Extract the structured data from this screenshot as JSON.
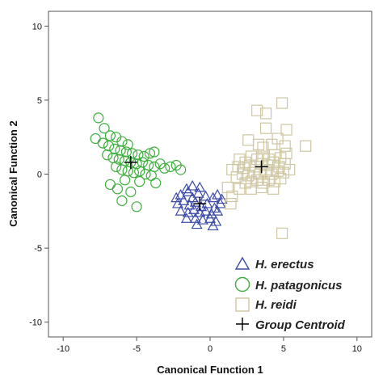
{
  "chart_data": {
    "type": "scatter",
    "xlabel": "Canonical Function 1",
    "ylabel": "Canonical Function 2",
    "xlim": [
      -11,
      11
    ],
    "ylim": [
      -11,
      11
    ],
    "xticks": [
      -10,
      -5,
      0,
      5,
      10
    ],
    "yticks": [
      10,
      5,
      0,
      -5,
      -10
    ],
    "grid": false,
    "legend_position": "bottom-right",
    "legend": [
      "H. erectus",
      "H. patagonicus",
      "H. reidi",
      "Group Centroid"
    ],
    "series": [
      {
        "name": "H. erectus",
        "marker": "triangle",
        "color": "#3a4aa8",
        "points": [
          [
            -2.0,
            -1.4
          ],
          [
            -1.5,
            -1.2
          ],
          [
            -1.2,
            -1.6
          ],
          [
            -0.8,
            -1.3
          ],
          [
            -0.3,
            -1.5
          ],
          [
            0.2,
            -1.6
          ],
          [
            0.5,
            -1.4
          ],
          [
            -2.2,
            -2.0
          ],
          [
            -1.8,
            -1.8
          ],
          [
            -1.4,
            -2.1
          ],
          [
            -1.0,
            -1.9
          ],
          [
            -0.6,
            -2.2
          ],
          [
            -0.2,
            -2.0
          ],
          [
            0.3,
            -2.3
          ],
          [
            0.7,
            -2.0
          ],
          [
            -2.0,
            -2.5
          ],
          [
            -1.5,
            -2.6
          ],
          [
            -1.1,
            -2.4
          ],
          [
            -0.7,
            -2.6
          ],
          [
            -0.3,
            -2.5
          ],
          [
            0.1,
            -2.7
          ],
          [
            0.5,
            -2.5
          ],
          [
            -1.6,
            -3.0
          ],
          [
            -1.0,
            -3.0
          ],
          [
            -0.5,
            -3.1
          ],
          [
            0.0,
            -3.0
          ],
          [
            0.4,
            -3.2
          ],
          [
            -1.2,
            -0.8
          ],
          [
            -0.7,
            -0.9
          ],
          [
            -1.6,
            -1.0
          ],
          [
            -0.9,
            -3.4
          ],
          [
            0.2,
            -3.5
          ],
          [
            0.8,
            -1.7
          ],
          [
            -2.3,
            -1.6
          ]
        ]
      },
      {
        "name": "H. patagonicus",
        "marker": "circle",
        "color": "#3cae3c",
        "points": [
          [
            -7.6,
            3.8
          ],
          [
            -7.2,
            3.1
          ],
          [
            -6.8,
            2.6
          ],
          [
            -6.4,
            2.5
          ],
          [
            -6.0,
            2.2
          ],
          [
            -5.6,
            2.0
          ],
          [
            -7.8,
            2.4
          ],
          [
            -7.3,
            2.1
          ],
          [
            -6.9,
            1.9
          ],
          [
            -6.5,
            1.7
          ],
          [
            -6.1,
            1.6
          ],
          [
            -5.7,
            1.5
          ],
          [
            -5.3,
            1.4
          ],
          [
            -4.9,
            1.3
          ],
          [
            -4.5,
            1.2
          ],
          [
            -4.1,
            1.4
          ],
          [
            -3.8,
            1.5
          ],
          [
            -7.0,
            1.3
          ],
          [
            -6.6,
            1.1
          ],
          [
            -6.2,
            1.0
          ],
          [
            -5.8,
            0.9
          ],
          [
            -5.4,
            0.8
          ],
          [
            -5.0,
            0.7
          ],
          [
            -4.6,
            0.8
          ],
          [
            -4.2,
            0.6
          ],
          [
            -3.8,
            0.5
          ],
          [
            -3.4,
            0.7
          ],
          [
            -6.4,
            0.5
          ],
          [
            -6.0,
            0.3
          ],
          [
            -5.6,
            0.2
          ],
          [
            -5.2,
            0.1
          ],
          [
            -4.8,
            0.2
          ],
          [
            -4.4,
            0.0
          ],
          [
            -4.0,
            -0.1
          ],
          [
            -3.1,
            0.4
          ],
          [
            -2.7,
            0.5
          ],
          [
            -2.3,
            0.6
          ],
          [
            -2.0,
            0.3
          ],
          [
            -6.8,
            -0.7
          ],
          [
            -6.3,
            -1.0
          ],
          [
            -5.4,
            -1.2
          ],
          [
            -5.0,
            -2.2
          ],
          [
            -6.0,
            -1.8
          ],
          [
            -4.8,
            -0.5
          ],
          [
            -5.8,
            -0.4
          ],
          [
            -3.7,
            -0.6
          ]
        ]
      },
      {
        "name": "H. reidi",
        "marker": "square",
        "color": "#cfc6a2",
        "points": [
          [
            2.0,
            1.0
          ],
          [
            2.4,
            0.8
          ],
          [
            2.8,
            1.2
          ],
          [
            3.2,
            1.0
          ],
          [
            3.6,
            1.2
          ],
          [
            4.0,
            1.0
          ],
          [
            4.4,
            1.3
          ],
          [
            4.8,
            1.1
          ],
          [
            5.2,
            1.4
          ],
          [
            1.5,
            0.3
          ],
          [
            1.9,
            0.5
          ],
          [
            2.3,
            0.4
          ],
          [
            2.7,
            0.6
          ],
          [
            3.1,
            0.5
          ],
          [
            3.5,
            0.7
          ],
          [
            3.9,
            0.6
          ],
          [
            4.3,
            0.8
          ],
          [
            4.7,
            0.5
          ],
          [
            5.1,
            0.7
          ],
          [
            1.8,
            -0.2
          ],
          [
            2.2,
            0.0
          ],
          [
            2.6,
            -0.1
          ],
          [
            3.0,
            0.1
          ],
          [
            3.4,
            0.0
          ],
          [
            3.8,
            0.2
          ],
          [
            4.2,
            0.0
          ],
          [
            4.6,
            0.2
          ],
          [
            5.0,
            0.1
          ],
          [
            5.4,
            0.3
          ],
          [
            2.4,
            -0.6
          ],
          [
            2.8,
            -0.5
          ],
          [
            3.2,
            -0.4
          ],
          [
            3.6,
            -0.6
          ],
          [
            4.0,
            -0.4
          ],
          [
            4.4,
            -0.5
          ],
          [
            4.8,
            -0.3
          ],
          [
            1.2,
            -0.9
          ],
          [
            2.0,
            -1.0
          ],
          [
            2.8,
            -1.0
          ],
          [
            1.5,
            -1.5
          ],
          [
            1.4,
            -2.0
          ],
          [
            3.6,
            1.8
          ],
          [
            4.2,
            2.0
          ],
          [
            4.6,
            2.4
          ],
          [
            5.1,
            1.9
          ],
          [
            2.6,
            2.3
          ],
          [
            3.3,
            2.0
          ],
          [
            3.2,
            4.3
          ],
          [
            3.8,
            4.1
          ],
          [
            4.9,
            4.8
          ],
          [
            5.2,
            3.0
          ],
          [
            6.5,
            1.9
          ],
          [
            3.8,
            3.1
          ],
          [
            4.9,
            -4.0
          ],
          [
            3.5,
            -0.9
          ],
          [
            4.3,
            -1.0
          ]
        ]
      }
    ],
    "centroids": [
      {
        "group": "H. erectus",
        "x": -0.7,
        "y": -2.0
      },
      {
        "group": "H. patagonicus",
        "x": -5.4,
        "y": 0.8
      },
      {
        "group": "H. reidi",
        "x": 3.5,
        "y": 0.5
      }
    ],
    "colors": {
      "erectus": "#3a4aa8",
      "patagonicus": "#3cae3c",
      "reidi": "#cfc6a2",
      "centroid": "#000000"
    }
  }
}
